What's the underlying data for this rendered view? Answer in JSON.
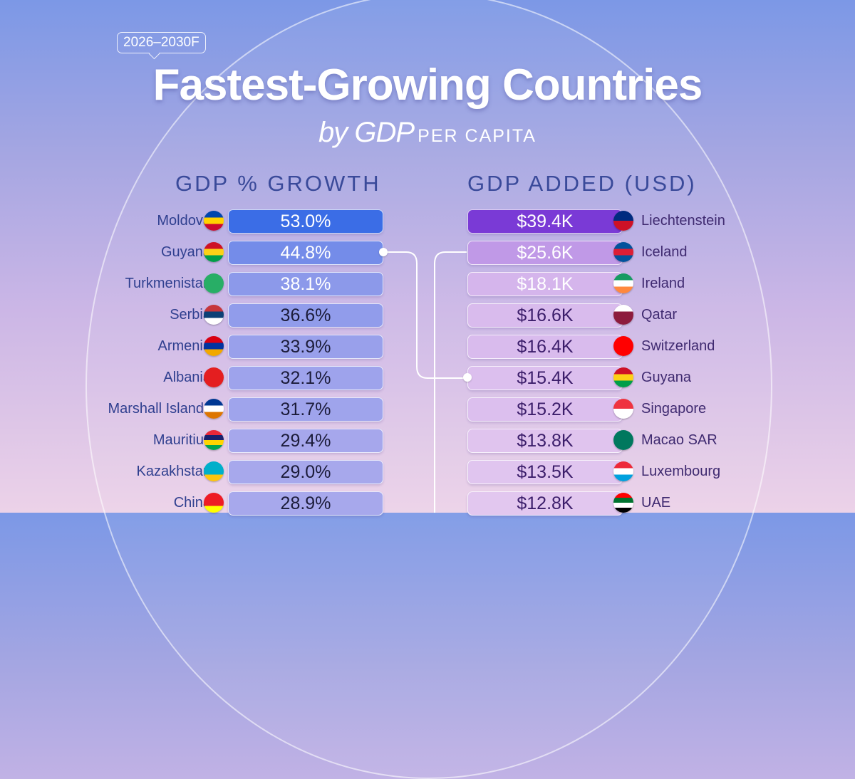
{
  "header": {
    "badge": "2026–2030F",
    "title": "Fastest-Growing Countries",
    "subtitle_by": "by GDP",
    "subtitle_pc": "PER CAPITA"
  },
  "chart_data": [
    {
      "type": "bar",
      "title": "GDP % GROWTH",
      "categories": [
        "Moldova",
        "Guyana",
        "Turkmenistan",
        "Serbia",
        "Armenia",
        "Albania",
        "Marshall Islands",
        "Mauritius",
        "Kazakhstan",
        "China"
      ],
      "values": [
        53.0,
        44.8,
        38.1,
        36.6,
        33.9,
        32.1,
        31.7,
        29.4,
        29.0,
        28.9
      ],
      "labels": [
        "53.0%",
        "44.8%",
        "38.1%",
        "36.6%",
        "33.9%",
        "32.1%",
        "31.7%",
        "29.4%",
        "29.0%",
        "28.9%"
      ],
      "unit": "%",
      "colors": {
        "high": "#3b6de6",
        "low": "#a7a8ec",
        "text_light": "#ffffff",
        "text_dark": "#1c1c3a"
      },
      "flags": [
        [
          "#0046ae",
          "#ffd200",
          "#cc092f"
        ],
        [
          "#ce1126",
          "#fcd116",
          "#009e49"
        ],
        [
          "#28ae66",
          "#28ae66",
          "#28ae66"
        ],
        [
          "#c6363c",
          "#0c4076",
          "#ffffff"
        ],
        [
          "#d90012",
          "#0033a0",
          "#f2a800"
        ],
        [
          "#e41e20",
          "#e41e20",
          "#e41e20"
        ],
        [
          "#003893",
          "#ffffff",
          "#dd7500"
        ],
        [
          "#ea2839",
          "#1a206d",
          "#ffd500",
          "#00a551"
        ],
        [
          "#00afca",
          "#00afca",
          "#fec50c"
        ],
        [
          "#ee1c25",
          "#ee1c25",
          "#ffff00"
        ]
      ]
    },
    {
      "type": "bar",
      "title": "GDP ADDED (USD)",
      "categories": [
        "Liechtenstein",
        "Iceland",
        "Ireland",
        "Qatar",
        "Switzerland",
        "Guyana",
        "Singapore",
        "Macao SAR",
        "Luxembourg",
        "UAE"
      ],
      "values": [
        39.4,
        25.6,
        18.1,
        16.6,
        16.4,
        15.4,
        15.2,
        13.8,
        13.5,
        12.8
      ],
      "labels": [
        "$39.4K",
        "$25.6K",
        "$18.1K",
        "$16.6K",
        "$16.4K",
        "$15.4K",
        "$15.2K",
        "$13.8K",
        "$13.5K",
        "$12.8K"
      ],
      "unit": "USD thousands",
      "colors": {
        "high": "#7a3ad6",
        "low": "#e2c7ef",
        "text_light": "#ffffff",
        "text_dark": "#3b1d6a"
      },
      "flags": [
        [
          "#002b7f",
          "#ce1126"
        ],
        [
          "#02529c",
          "#dc1e35",
          "#02529c"
        ],
        [
          "#169b62",
          "#ffffff",
          "#ff883e"
        ],
        [
          "#ffffff",
          "#8d1b3d",
          "#8d1b3d"
        ],
        [
          "#ff0000",
          "#ff0000"
        ],
        [
          "#ce1126",
          "#fcd116",
          "#009e49"
        ],
        [
          "#ef3340",
          "#ffffff"
        ],
        [
          "#00785e",
          "#00785e"
        ],
        [
          "#ed2939",
          "#ffffff",
          "#00a1de"
        ],
        [
          "#ff0000",
          "#00732f",
          "#ffffff",
          "#000000"
        ]
      ]
    }
  ],
  "highlight": "Guyana"
}
